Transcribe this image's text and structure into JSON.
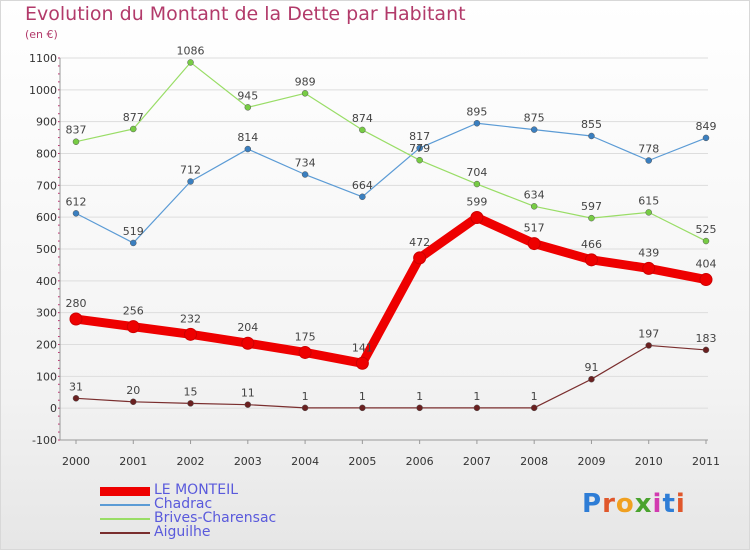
{
  "title": "Evolution du Montant de la Dette par Habitant",
  "subtitle": "(en €)",
  "logo": {
    "letters": [
      "P",
      "r",
      "o",
      "x",
      "i",
      "t",
      "i"
    ],
    "colors": [
      "#2e7dd6",
      "#e0572b",
      "#f0a020",
      "#4aa32e",
      "#d23ab0",
      "#2e7dd6",
      "#e0572b"
    ]
  },
  "chart_data": {
    "type": "line",
    "x": [
      "2000",
      "2001",
      "2002",
      "2003",
      "2004",
      "2005",
      "2006",
      "2007",
      "2008",
      "2009",
      "2010",
      "2011"
    ],
    "ylim": [
      -100,
      1100
    ],
    "yticks": [
      -100,
      0,
      100,
      200,
      300,
      400,
      500,
      600,
      700,
      800,
      900,
      1000,
      1100
    ],
    "grid": true,
    "legend_position": "bottom-left",
    "series": [
      {
        "name": "LE MONTEIL",
        "color": "#ee0000",
        "marker": "#ee0000",
        "width": 9,
        "radius": 6,
        "values": [
          280,
          256,
          232,
          204,
          175,
          141,
          472,
          599,
          517,
          466,
          439,
          404
        ]
      },
      {
        "name": "Chadrac",
        "color": "#5b9bd5",
        "marker": "#3a7fc0",
        "width": 1.2,
        "radius": 3,
        "values": [
          612,
          519,
          712,
          814,
          734,
          664,
          817,
          895,
          875,
          855,
          778,
          849
        ]
      },
      {
        "name": "Brives-Charensac",
        "color": "#99dd66",
        "marker": "#77cc44",
        "width": 1.2,
        "radius": 3,
        "values": [
          837,
          877,
          1086,
          945,
          989,
          874,
          779,
          704,
          634,
          597,
          615,
          525
        ]
      },
      {
        "name": "Aiguilhe",
        "color": "#7a2e2e",
        "marker": "#6a2020",
        "width": 1.2,
        "radius": 3,
        "values": [
          31,
          20,
          15,
          11,
          1,
          1,
          1,
          1,
          1,
          91,
          197,
          183
        ]
      }
    ]
  }
}
